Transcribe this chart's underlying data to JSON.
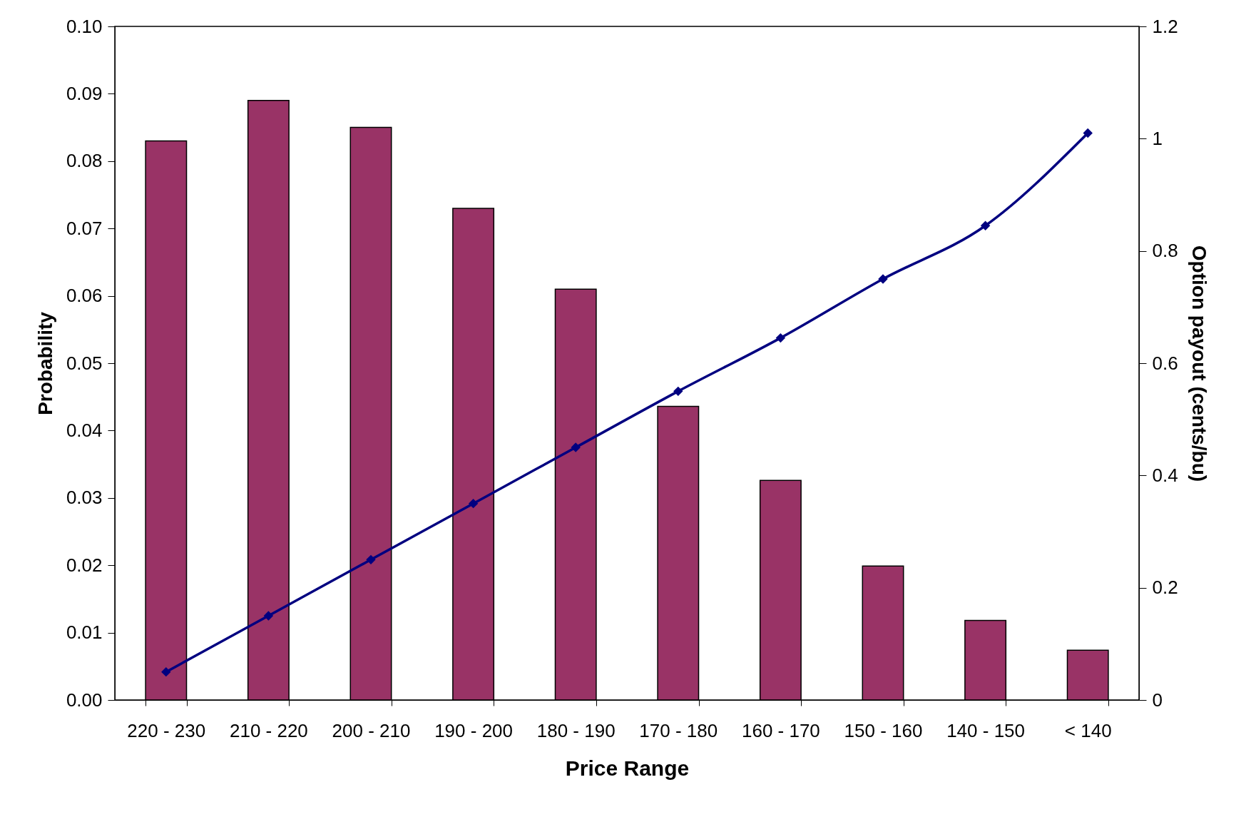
{
  "chart_data": {
    "type": "bar",
    "xlabel": "Price Range",
    "ylabel": "Probability",
    "y2label": "Option payout (cents/bu)",
    "categories": [
      "220 - 230",
      "210 - 220",
      "200 - 210",
      "190 - 200",
      "180 - 190",
      "170 - 180",
      "160 - 170",
      "150 - 160",
      "140 - 150",
      "< 140"
    ],
    "series": [
      {
        "color": "#993366",
        "values": [
          0.083,
          0.089,
          0.085,
          0.073,
          0.061,
          0.0436,
          0.0326,
          0.0199,
          0.0118,
          0.0074
        ]
      },
      {
        "type": "line",
        "axis": "y2",
        "color": "#000080",
        "marker": "diamond",
        "values": [
          0.05,
          0.15,
          0.25,
          0.35,
          0.45,
          0.55,
          0.645,
          0.75,
          0.845,
          1.01
        ]
      }
    ],
    "ylim": [
      0,
      0.1
    ],
    "yticks": [
      {
        "value": 0,
        "label": "0.00"
      },
      {
        "value": 0.01,
        "label": "0.01"
      },
      {
        "value": 0.02,
        "label": "0.02"
      },
      {
        "value": 0.03,
        "label": "0.03"
      },
      {
        "value": 0.04,
        "label": "0.04"
      },
      {
        "value": 0.05,
        "label": "0.05"
      },
      {
        "value": 0.06,
        "label": "0.06"
      },
      {
        "value": 0.07,
        "label": "0.07"
      },
      {
        "value": 0.08,
        "label": "0.08"
      },
      {
        "value": 0.09,
        "label": "0.09"
      },
      {
        "value": 0.1,
        "label": "0.10"
      }
    ],
    "y2lim": [
      0,
      1.2
    ],
    "y2ticks": [
      0,
      0.2,
      0.4,
      0.6,
      0.8,
      1,
      1.2
    ],
    "grid": false
  }
}
